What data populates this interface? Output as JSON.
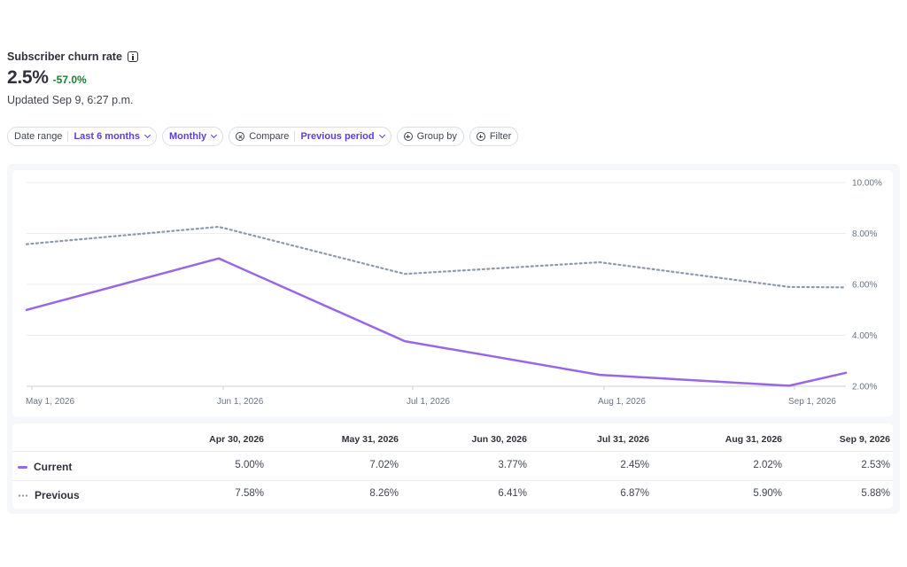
{
  "header": {
    "title": "Subscriber churn rate",
    "value": "2.5%",
    "change": "-57.0%",
    "updated": "Updated Sep 9, 6:27 p.m."
  },
  "filters": {
    "date_range_label": "Date range",
    "date_range_value": "Last 6 months",
    "interval_value": "Monthly",
    "compare_label": "Compare",
    "compare_value": "Previous period",
    "group_by_label": "Group by",
    "filter_label": "Filter"
  },
  "colors": {
    "current": "#9966e6",
    "previous": "#8c99ad",
    "positive_change": "#1a7f37",
    "accent": "#5e3fd6"
  },
  "chart_data": {
    "type": "line",
    "x": [
      "Apr 30, 2026",
      "May 31, 2026",
      "Jun 30, 2026",
      "Jul 31, 2026",
      "Aug 31, 2026",
      "Sep 9, 2026"
    ],
    "x_tick_labels": [
      "May 1, 2026",
      "Jun 1, 2026",
      "Jul 1, 2026",
      "Aug 1, 2026",
      "Sep 1, 2026"
    ],
    "y_tick_labels": [
      "2.00%",
      "4.00%",
      "6.00%",
      "8.00%",
      "10.00%"
    ],
    "ylim": [
      2,
      10
    ],
    "grid": true,
    "series": [
      {
        "name": "Current",
        "values": [
          5.0,
          7.02,
          3.77,
          2.45,
          2.02,
          2.53
        ],
        "style": "solid"
      },
      {
        "name": "Previous",
        "values": [
          7.58,
          8.26,
          6.41,
          6.87,
          5.9,
          5.88
        ],
        "style": "dotted"
      }
    ]
  },
  "table": {
    "columns": [
      "Apr 30, 2026",
      "May 31, 2026",
      "Jun 30, 2026",
      "Jul 31, 2026",
      "Aug 31, 2026",
      "Sep 9, 2026"
    ],
    "rows": [
      {
        "label": "Current",
        "cells": [
          "5.00%",
          "7.02%",
          "3.77%",
          "2.45%",
          "2.02%",
          "2.53%"
        ]
      },
      {
        "label": "Previous",
        "cells": [
          "7.58%",
          "8.26%",
          "6.41%",
          "6.87%",
          "5.90%",
          "5.88%"
        ]
      }
    ]
  }
}
